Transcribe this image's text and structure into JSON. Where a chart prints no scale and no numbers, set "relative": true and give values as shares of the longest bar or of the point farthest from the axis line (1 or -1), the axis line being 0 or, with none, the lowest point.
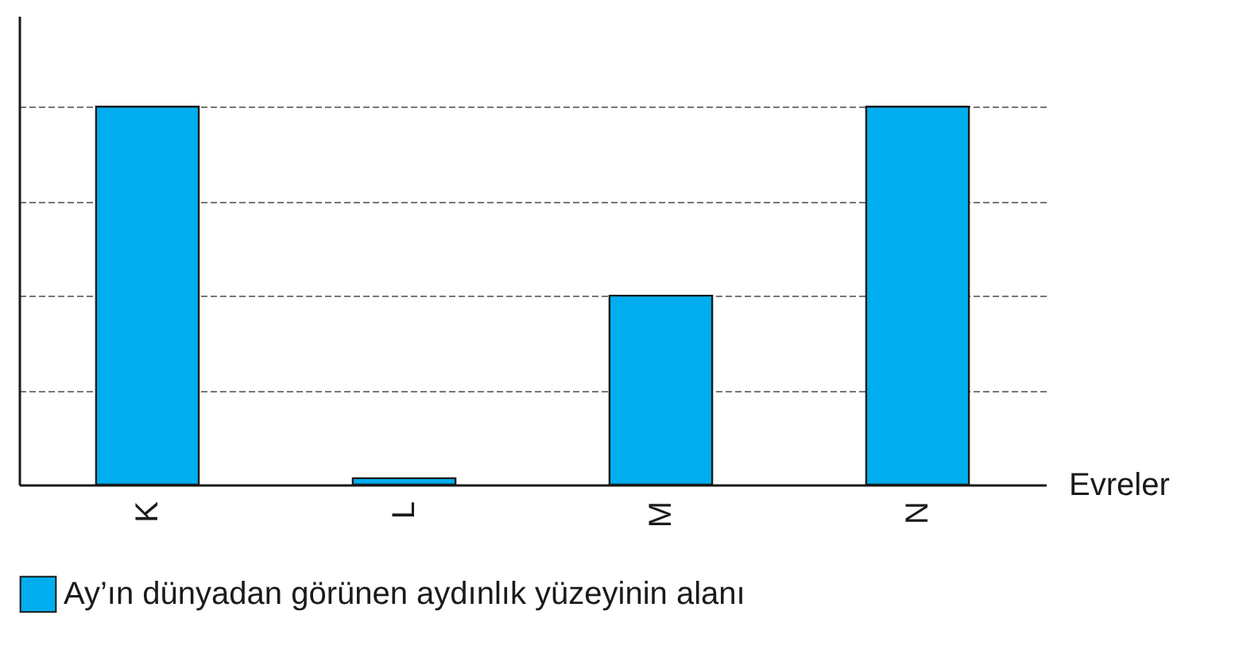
{
  "chart_data": {
    "type": "bar",
    "relative": true,
    "xlabel": "Evreler",
    "categories": [
      "K",
      "L",
      "M",
      "N"
    ],
    "series": [
      {
        "name": "Ay’ın dünyadan görünen aydınlık yüzeyinin alanı",
        "color": "#00aeef",
        "values": [
          1,
          0.017,
          0.5,
          1
        ]
      }
    ],
    "grid": "y",
    "legend": "bottom"
  }
}
